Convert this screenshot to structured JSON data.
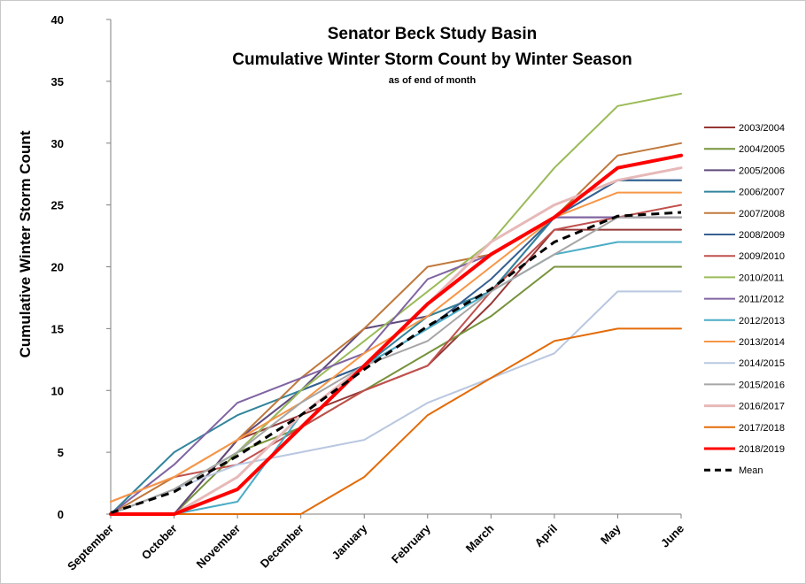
{
  "chart_data": {
    "type": "line",
    "title": "Senator Beck Study Basin",
    "subtitle": "Cumulative Winter Storm Count by Winter Season",
    "note": "as of end of month",
    "ylabel": "Cumulative Winter Storm Count",
    "xlabel": "",
    "ylim": [
      0,
      40
    ],
    "yticks": [
      "0",
      "5",
      "10",
      "15",
      "20",
      "25",
      "30",
      "35",
      "40"
    ],
    "categories": [
      "September",
      "October",
      "November",
      "December",
      "January",
      "February",
      "March",
      "April",
      "May",
      "June"
    ],
    "grid": false,
    "legend_position": "right",
    "series": [
      {
        "name": "2003/2004",
        "color": "#953735",
        "width": 2,
        "dash": "",
        "values": [
          0,
          0,
          6,
          8,
          10,
          12,
          17,
          23,
          23,
          23
        ]
      },
      {
        "name": "2004/2005",
        "color": "#77933c",
        "width": 2,
        "dash": "",
        "values": [
          0,
          0,
          5,
          7,
          10,
          13,
          16,
          20,
          20,
          20
        ]
      },
      {
        "name": "2005/2006",
        "color": "#604a7b",
        "width": 2,
        "dash": "",
        "values": [
          0,
          0,
          6,
          10,
          15,
          16,
          18,
          24,
          24,
          24
        ]
      },
      {
        "name": "2006/2007",
        "color": "#31859c",
        "width": 2,
        "dash": "",
        "values": [
          0,
          5,
          8,
          10,
          12,
          16,
          18,
          24,
          27,
          27
        ]
      },
      {
        "name": "2007/2008",
        "color": "#c0783c",
        "width": 2,
        "dash": "",
        "values": [
          0,
          3,
          6,
          11,
          15,
          20,
          21,
          24,
          29,
          30
        ]
      },
      {
        "name": "2008/2009",
        "color": "#376092",
        "width": 2,
        "dash": "",
        "values": [
          0,
          2,
          5,
          10,
          12,
          15,
          19,
          24,
          27,
          27
        ]
      },
      {
        "name": "2009/2010",
        "color": "#c0504d",
        "width": 2,
        "dash": "",
        "values": [
          1,
          3,
          4,
          7,
          10,
          12,
          18,
          23,
          24,
          25
        ]
      },
      {
        "name": "2010/2011",
        "color": "#9bbb59",
        "width": 2,
        "dash": "",
        "values": [
          0,
          2,
          5,
          10,
          14,
          18,
          22,
          28,
          33,
          34
        ]
      },
      {
        "name": "2011/2012",
        "color": "#8064a2",
        "width": 2,
        "dash": "",
        "values": [
          0,
          4,
          9,
          11,
          13,
          19,
          21,
          24,
          24,
          24
        ]
      },
      {
        "name": "2012/2013",
        "color": "#4bacc6",
        "width": 2,
        "dash": "",
        "values": [
          0,
          0,
          1,
          8,
          12,
          15,
          18,
          21,
          22,
          22
        ]
      },
      {
        "name": "2013/2014",
        "color": "#f79646",
        "width": 2,
        "dash": "",
        "values": [
          1,
          3,
          6,
          9,
          13,
          16,
          20,
          24,
          26,
          26
        ]
      },
      {
        "name": "2014/2015",
        "color": "#b9c7e0",
        "width": 2,
        "dash": "",
        "values": [
          0,
          2,
          4,
          5,
          6,
          9,
          11,
          13,
          18,
          18
        ]
      },
      {
        "name": "2015/2016",
        "color": "#a6a6a6",
        "width": 2,
        "dash": "",
        "values": [
          0,
          2,
          5,
          9,
          12,
          14,
          18,
          21,
          24,
          24
        ]
      },
      {
        "name": "2016/2017",
        "color": "#e6b9b8",
        "width": 3,
        "dash": "",
        "values": [
          0,
          0,
          3,
          8,
          12,
          17,
          22,
          25,
          27,
          28
        ]
      },
      {
        "name": "2017/2018",
        "color": "#e36c09",
        "width": 2,
        "dash": "",
        "values": [
          0,
          0,
          0,
          0,
          3,
          8,
          11,
          14,
          15,
          15
        ]
      },
      {
        "name": "2018/2019",
        "color": "#ff0000",
        "width": 4,
        "dash": "",
        "values": [
          0,
          0,
          2,
          7,
          12,
          17,
          21,
          24,
          28,
          29
        ]
      },
      {
        "name": "Mean",
        "color": "#000000",
        "width": 3,
        "dash": "9,6",
        "values": [
          0.1,
          1.8,
          4.7,
          8.0,
          11.7,
          15.2,
          18.2,
          22.0,
          24.1,
          24.4
        ]
      }
    ]
  }
}
